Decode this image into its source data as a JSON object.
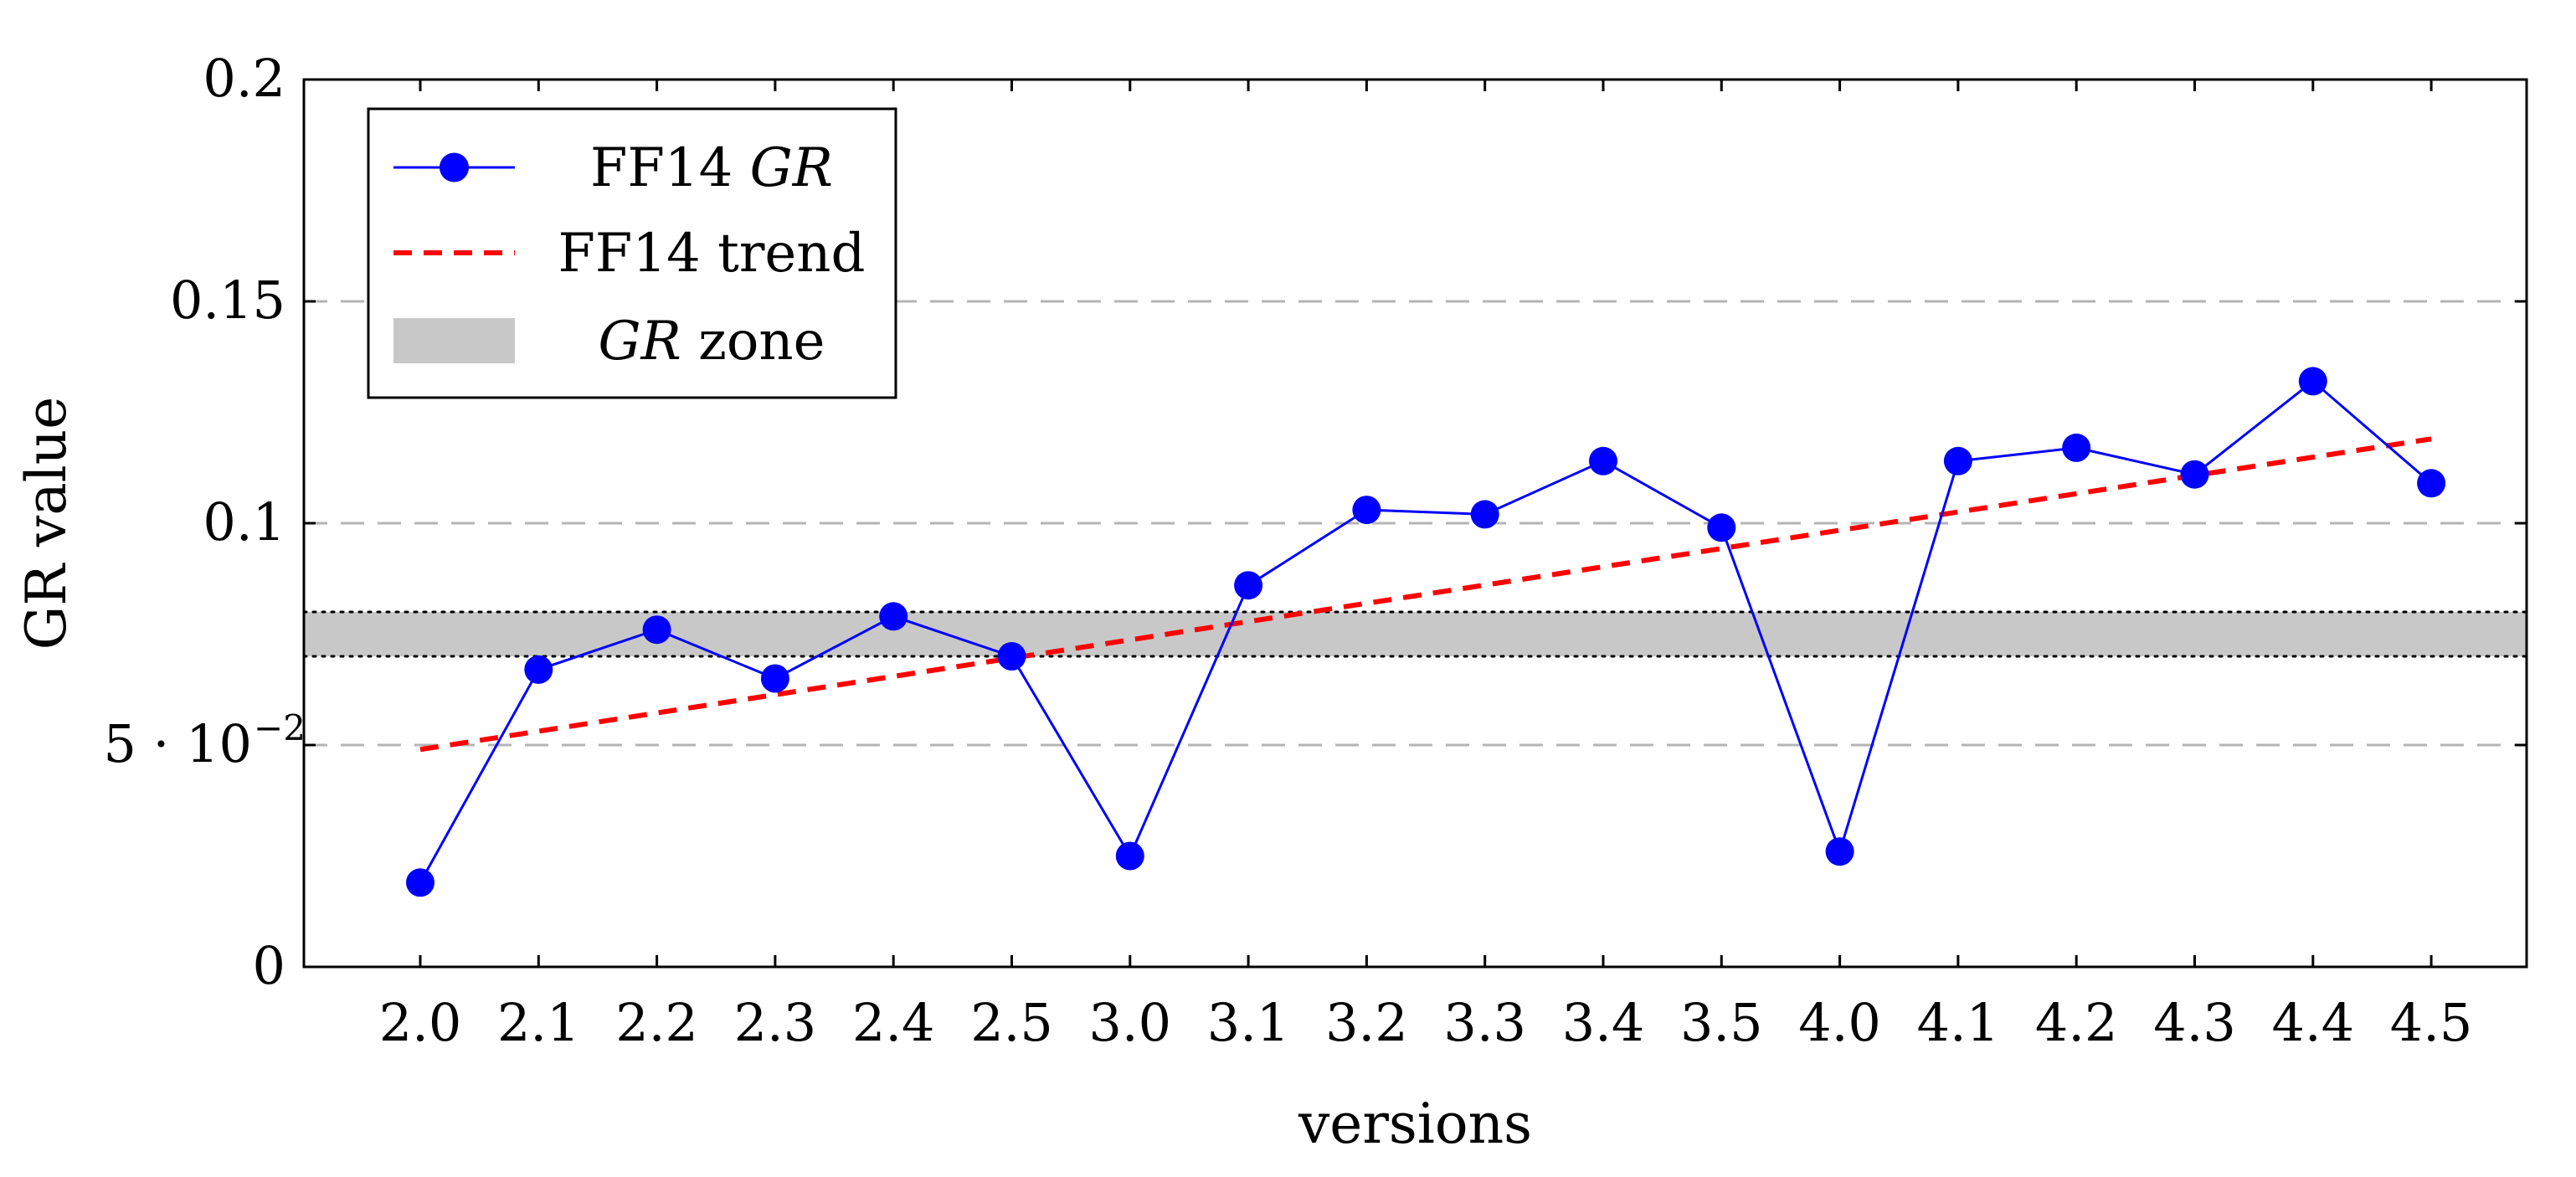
{
  "chart_data": {
    "type": "line",
    "xlabel": "versions",
    "ylabel": "GR value",
    "categories": [
      "2.0",
      "2.1",
      "2.2",
      "2.3",
      "2.4",
      "2.5",
      "3.0",
      "3.1",
      "3.2",
      "3.3",
      "3.4",
      "3.5",
      "4.0",
      "4.1",
      "4.2",
      "4.3",
      "4.4",
      "4.5"
    ],
    "ylim": [
      0,
      0.2
    ],
    "yticks": [
      0,
      0.05,
      0.1,
      0.15,
      0.2
    ],
    "ytick_labels": [
      "0",
      "5 · 10",
      "0.1",
      "0.15",
      "0.2"
    ],
    "ytick_exponent": "−2",
    "grid": "horizontal dashed",
    "legend_position": "top-left",
    "series": [
      {
        "name": "FF14 GR",
        "legend_label": "FF14",
        "legend_label_italic": "GR",
        "style": "line-with-markers",
        "color": "#0000ff",
        "values": [
          0.019,
          0.067,
          0.076,
          0.065,
          0.079,
          0.07,
          0.025,
          0.086,
          0.103,
          0.102,
          0.114,
          0.099,
          0.026,
          0.114,
          0.117,
          0.111,
          0.132,
          0.109
        ]
      },
      {
        "name": "FF14 trend",
        "legend_label": "FF14 trend",
        "style": "dashed",
        "color": "#ff0000",
        "start": {
          "x": "2.0",
          "y": 0.049
        },
        "end": {
          "x": "4.5",
          "y": 0.119
        }
      }
    ],
    "band": {
      "legend_label_italic": "GR",
      "legend_label": "zone",
      "color": "#c8c8c8",
      "from": 0.07,
      "to": 0.08
    }
  }
}
